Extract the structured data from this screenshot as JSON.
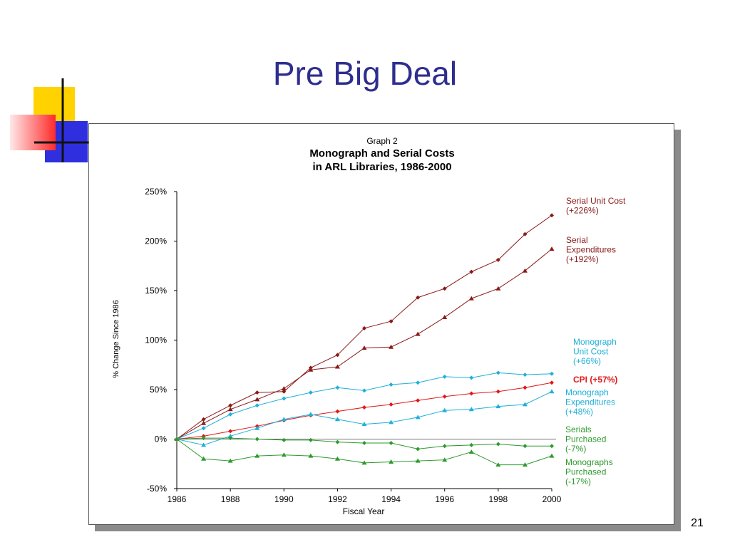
{
  "slide": {
    "title": "Pre Big Deal",
    "page_number": "21"
  },
  "colors": {
    "title": "#2e2e8f",
    "deco_yellow": "#ffd200",
    "deco_blue": "#2f2fe0",
    "deco_red": "#ff3c3c"
  },
  "chart_data": {
    "type": "line",
    "supertitle": "Graph 2",
    "title_lines": [
      "Monograph and Serial Costs",
      "in ARL Libraries, 1986-2000"
    ],
    "xlabel": "Fiscal Year",
    "ylabel": "% Change Since 1986",
    "xlim": [
      1986,
      2000
    ],
    "ylim": [
      -50,
      250
    ],
    "x_ticks": [
      1986,
      1988,
      1990,
      1992,
      1994,
      1996,
      1998,
      2000
    ],
    "y_ticks": [
      {
        "value": -50,
        "label": "-50%"
      },
      {
        "value": 0,
        "label": "0%"
      },
      {
        "value": 50,
        "label": "50%"
      },
      {
        "value": 100,
        "label": "100%"
      },
      {
        "value": 150,
        "label": "150%"
      },
      {
        "value": 200,
        "label": "200%"
      },
      {
        "value": 250,
        "label": "250%"
      }
    ],
    "baseline": 0,
    "x": [
      1986,
      1987,
      1988,
      1989,
      1990,
      1991,
      1992,
      1993,
      1994,
      1995,
      1996,
      1997,
      1998,
      1999,
      2000
    ],
    "series": [
      {
        "name": "Serial Unit Cost (+226%)",
        "label_lines": [
          "Serial Unit Cost",
          "(+226%)"
        ],
        "color": "#8b1a1a",
        "marker": "diamond",
        "values": [
          0,
          20,
          34,
          47,
          48,
          72,
          85,
          112,
          119,
          143,
          152,
          169,
          181,
          207,
          226
        ]
      },
      {
        "name": "Serial Expenditures (+192%)",
        "label_lines": [
          "Serial",
          "Expenditures",
          "(+192%)"
        ],
        "color": "#8b1a1a",
        "marker": "triangle",
        "values": [
          0,
          16,
          30,
          40,
          51,
          70,
          73,
          92,
          93,
          106,
          123,
          142,
          152,
          170,
          192
        ]
      },
      {
        "name": "Monograph Unit Cost (+66%)",
        "label_lines": [
          "Monograph",
          "Unit Cost",
          "(+66%)"
        ],
        "color": "#1fb0d8",
        "marker": "diamond",
        "values": [
          0,
          11,
          25,
          34,
          41,
          47,
          52,
          49,
          55,
          57,
          63,
          62,
          67,
          65,
          66
        ]
      },
      {
        "name": "CPI (+57%)",
        "label_lines": [
          "CPI (+57%)"
        ],
        "color": "#e01818",
        "marker": "diamond",
        "values": [
          0,
          3,
          8,
          13,
          19,
          24,
          28,
          32,
          35,
          39,
          43,
          46,
          48,
          52,
          57
        ]
      },
      {
        "name": "Monograph Expenditures (+48%)",
        "label_lines": [
          "Monograph",
          "Expenditures",
          "(+48%)"
        ],
        "color": "#1fb0d8",
        "marker": "triangle",
        "values": [
          0,
          -6,
          3,
          11,
          20,
          25,
          20,
          15,
          17,
          22,
          29,
          30,
          33,
          35,
          48
        ]
      },
      {
        "name": "Serials Purchased (-7%)",
        "label_lines": [
          "Serials",
          "Purchased",
          "(-7%)"
        ],
        "color": "#2e9a2e",
        "marker": "diamond",
        "values": [
          0,
          1,
          1,
          0,
          -1,
          -1,
          -3,
          -4,
          -4,
          -10,
          -7,
          -6,
          -5,
          -7,
          -7
        ]
      },
      {
        "name": "Monographs Purchased (-17%)",
        "label_lines": [
          "Monographs",
          "Purchased",
          "(-17%)"
        ],
        "color": "#2e9a2e",
        "marker": "triangle",
        "values": [
          0,
          -20,
          -22,
          -17,
          -16,
          -17,
          -20,
          -24,
          -23,
          -22,
          -21,
          -13,
          -26,
          -26,
          -17
        ]
      }
    ]
  }
}
